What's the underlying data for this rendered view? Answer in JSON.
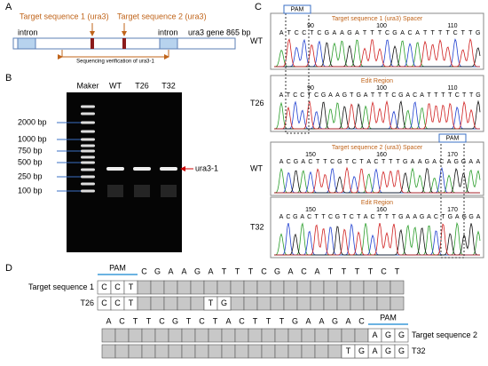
{
  "panel_a": {
    "label": "A",
    "target1": "Target sequence 1 (ura3)",
    "target2": "Target sequence 2 (ura3)",
    "intron_left": "intron",
    "intron_right": "intron",
    "gene": "ura3 gene 865 bp",
    "verification": "Sequencing verification of ura3-1"
  },
  "panel_b": {
    "label": "B",
    "lanes": [
      "Maker",
      "WT",
      "T26",
      "T32"
    ],
    "ladder": [
      "2000 bp",
      "1000 bp",
      "750 bp",
      "500 bp",
      "250 bp",
      "100 bp"
    ],
    "band_label": "ura3-1"
  },
  "panel_c": {
    "label": "C",
    "traces": [
      {
        "sample": "WT",
        "header": "Target sequence 1 (ura3)  Spacer",
        "pam": "PAM",
        "numbers": [
          90,
          100,
          110
        ],
        "bases": [
          "A",
          "T",
          "C",
          "C",
          "T",
          "C",
          "G",
          "A",
          "A",
          "G",
          "A",
          "T",
          "T",
          "T",
          "C",
          "G",
          "A",
          "C",
          "A",
          "T",
          "T",
          "T",
          "T",
          "C",
          "T",
          "T",
          "G"
        ]
      },
      {
        "sample": "T26",
        "header": "Edit Region",
        "numbers": [
          90,
          100,
          110
        ],
        "bases": [
          "A",
          "T",
          "C",
          "C",
          "T",
          "C",
          "G",
          "A",
          "A",
          "G",
          "T",
          "G",
          "A",
          "T",
          "T",
          "T",
          "C",
          "G",
          "A",
          "C",
          "A",
          "T",
          "T",
          "T",
          "T",
          "C",
          "T",
          "T",
          "G"
        ]
      },
      {
        "sample": "WT",
        "header": "Target sequence 2 (ura3)  Spacer",
        "pam": "PAM",
        "numbers": [
          150,
          160,
          170
        ],
        "bases": [
          "A",
          "C",
          "G",
          "A",
          "C",
          "T",
          "T",
          "C",
          "G",
          "T",
          "C",
          "T",
          "A",
          "C",
          "T",
          "T",
          "T",
          "G",
          "A",
          "A",
          "G",
          "A",
          "C",
          "A",
          "G",
          "G",
          "A",
          "A"
        ]
      },
      {
        "sample": "T32",
        "header": "Edit Region",
        "numbers": [
          150,
          160,
          170
        ],
        "bases": [
          "A",
          "C",
          "G",
          "A",
          "C",
          "T",
          "T",
          "C",
          "G",
          "T",
          "C",
          "T",
          "A",
          "C",
          "T",
          "T",
          "T",
          "G",
          "A",
          "A",
          "G",
          "A",
          "C",
          "T",
          "G",
          "A",
          "G",
          "G",
          "A"
        ]
      }
    ]
  },
  "panel_d": {
    "label": "D",
    "block1": {
      "pam": "PAM",
      "header": [
        "C",
        "G",
        "A",
        "A",
        "G",
        "A",
        "T",
        "T",
        "T",
        "C",
        "G",
        "A",
        "C",
        "A",
        "T",
        "T",
        "T",
        "T",
        "C",
        "T"
      ],
      "row_labels": [
        "Target sequence 1",
        "T26"
      ],
      "ref_cells": [
        "C",
        "C",
        "T"
      ],
      "edit_cells": [
        "C",
        "C",
        "T"
      ],
      "insert": [
        "T",
        "G"
      ]
    },
    "block2": {
      "pam": "PAM",
      "header": [
        "A",
        "C",
        "T",
        "T",
        "C",
        "G",
        "T",
        "C",
        "T",
        "A",
        "C",
        "T",
        "T",
        "T",
        "G",
        "A",
        "A",
        "G",
        "A",
        "C"
      ],
      "row_labels": [
        "Target sequence 2",
        "T32"
      ],
      "ref_cells": [
        "A",
        "G",
        "G"
      ],
      "edit_cells": [
        "A",
        "G",
        "G"
      ],
      "insert": [
        "T",
        "G"
      ]
    }
  }
}
